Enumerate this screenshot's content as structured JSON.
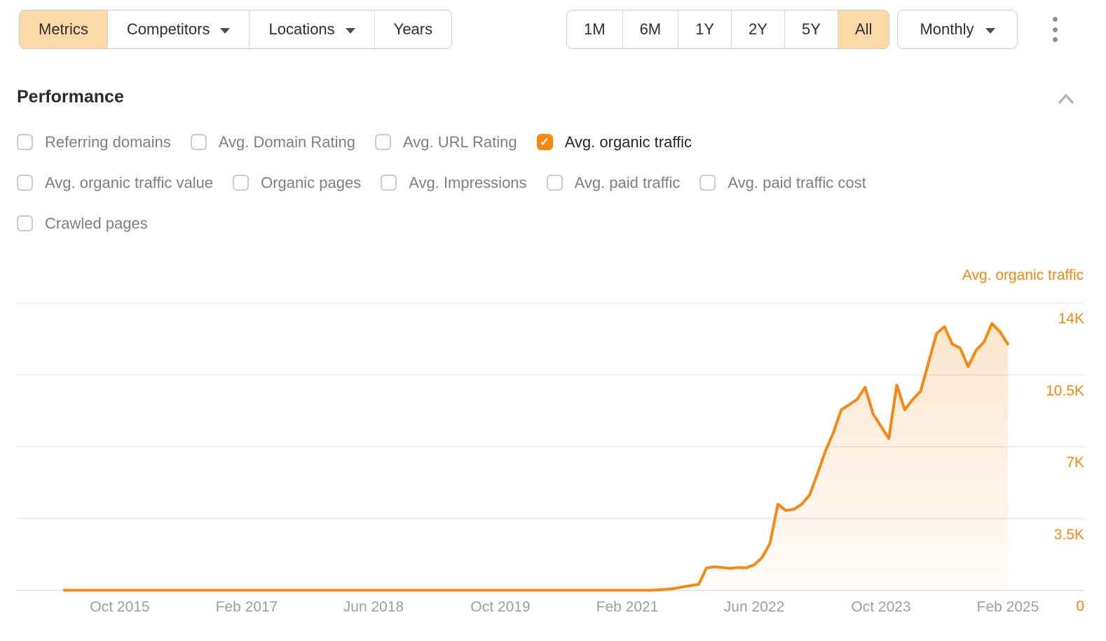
{
  "toolbar": {
    "view_buttons": [
      {
        "label": "Metrics",
        "selected": true,
        "caret": false
      },
      {
        "label": "Competitors",
        "selected": false,
        "caret": true
      },
      {
        "label": "Locations",
        "selected": false,
        "caret": true
      },
      {
        "label": "Years",
        "selected": false,
        "caret": false
      }
    ],
    "range_buttons": [
      {
        "label": "1M",
        "selected": false
      },
      {
        "label": "6M",
        "selected": false
      },
      {
        "label": "1Y",
        "selected": false
      },
      {
        "label": "2Y",
        "selected": false
      },
      {
        "label": "5Y",
        "selected": false
      },
      {
        "label": "All",
        "selected": true
      }
    ],
    "interval_label": "Monthly"
  },
  "performance": {
    "title": "Performance",
    "metric_rows": [
      [
        {
          "label": "Referring domains",
          "checked": false
        },
        {
          "label": "Avg. Domain Rating",
          "checked": false
        },
        {
          "label": "Avg. URL Rating",
          "checked": false
        },
        {
          "label": "Avg. organic traffic",
          "checked": true
        }
      ],
      [
        {
          "label": "Avg. organic traffic value",
          "checked": false
        },
        {
          "label": "Organic pages",
          "checked": false
        },
        {
          "label": "Avg. Impressions",
          "checked": false
        },
        {
          "label": "Avg. paid traffic",
          "checked": false
        },
        {
          "label": "Avg. paid traffic cost",
          "checked": false
        }
      ],
      [
        {
          "label": "Crawled pages",
          "checked": false
        }
      ]
    ]
  },
  "chart_data": {
    "type": "line",
    "title": "Avg. organic traffic",
    "series_name": "Avg. organic traffic",
    "interval": "monthly",
    "start_month": "Mar 2015",
    "end_month": "Feb 2025",
    "ylim": [
      0,
      14000
    ],
    "grid": "horizontal",
    "legend_position": "top-right",
    "y_ticks": [
      {
        "label": "14K",
        "value": 14000
      },
      {
        "label": "10.5K",
        "value": 10500
      },
      {
        "label": "7K",
        "value": 7000
      },
      {
        "label": "3.5K",
        "value": 3500
      },
      {
        "label": "0",
        "value": 0
      }
    ],
    "x_ticks": [
      {
        "label": "Oct 2015",
        "month_index": 7
      },
      {
        "label": "Feb 2017",
        "month_index": 23
      },
      {
        "label": "Jun 2018",
        "month_index": 39
      },
      {
        "label": "Oct 2019",
        "month_index": 55
      },
      {
        "label": "Feb 2021",
        "month_index": 71
      },
      {
        "label": "Jun 2022",
        "month_index": 87
      },
      {
        "label": "Oct 2023",
        "month_index": 103
      },
      {
        "label": "Feb 2025",
        "month_index": 119
      }
    ],
    "values": [
      15,
      15,
      15,
      15,
      15,
      15,
      15,
      15,
      15,
      15,
      15,
      15,
      15,
      15,
      15,
      15,
      15,
      15,
      15,
      15,
      15,
      15,
      15,
      15,
      15,
      15,
      15,
      15,
      15,
      15,
      15,
      15,
      15,
      15,
      15,
      15,
      15,
      15,
      15,
      15,
      15,
      15,
      15,
      15,
      15,
      15,
      15,
      15,
      15,
      15,
      15,
      15,
      15,
      15,
      15,
      15,
      15,
      15,
      15,
      15,
      15,
      15,
      15,
      15,
      15,
      15,
      15,
      15,
      15,
      15,
      15,
      15,
      15,
      15,
      15,
      30,
      60,
      100,
      180,
      240,
      300,
      1100,
      1150,
      1120,
      1080,
      1120,
      1100,
      1250,
      1600,
      2300,
      4200,
      3900,
      3950,
      4200,
      4650,
      5700,
      6800,
      7700,
      8800,
      9050,
      9300,
      9900,
      8600,
      8000,
      7400,
      10000,
      8800,
      9300,
      9700,
      11100,
      12500,
      12850,
      12000,
      11800,
      10900,
      11700,
      12100,
      13000,
      12600,
      12000
    ]
  },
  "colors": {
    "accent_orange": "#f8890f",
    "line_orange": "#f28a17",
    "selected_button_bg": "#fcd9a6",
    "gridline": "#ebebeb",
    "muted_text": "#7f7f7f",
    "axis_text": "#9e9e9e"
  }
}
